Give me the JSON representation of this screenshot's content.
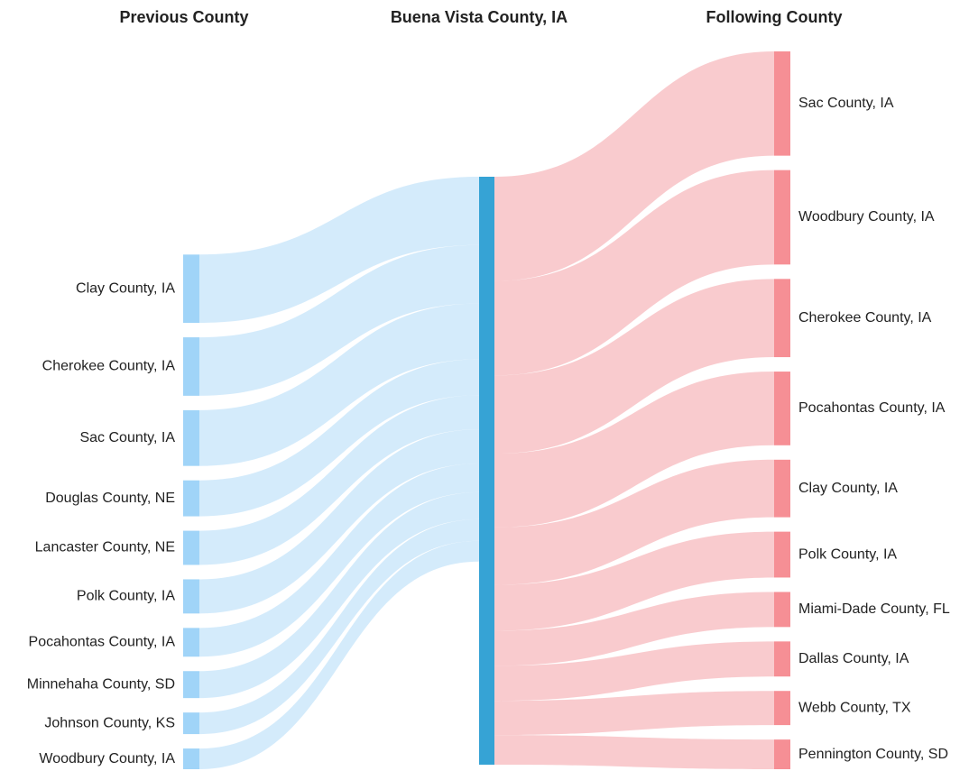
{
  "chart_data": {
    "type": "sankey",
    "center": {
      "title": "Buena Vista County, IA",
      "color": "#36a3d5"
    },
    "source": {
      "title": "Previous County",
      "node_color": "#a0d4f8",
      "flow_color": "#c6e4fa",
      "categories": [
        "Clay County, IA",
        "Cherokee County, IA",
        "Sac County, IA",
        "Douglas County, NE",
        "Lancaster County, NE",
        "Polk County, IA",
        "Pocahontas County, IA",
        "Minnehaha County, SD",
        "Johnson County, KS",
        "Woodbury County, IA"
      ],
      "values": [
        76,
        65,
        62,
        40,
        38,
        38,
        32,
        30,
        24,
        23
      ]
    },
    "target": {
      "title": "Following County",
      "node_color": "#f68f95",
      "flow_color": "#f6b5b9",
      "categories": [
        "Sac County, IA",
        "Woodbury County, IA",
        "Cherokee County, IA",
        "Pocahontas County, IA",
        "Clay County, IA",
        "Polk County, IA",
        "Miami-Dade County, FL",
        "Dallas County, IA",
        "Webb County, TX",
        "Pennington County, SD"
      ],
      "values": [
        116,
        105,
        87,
        82,
        64,
        51,
        39,
        39,
        38,
        33
      ]
    }
  }
}
